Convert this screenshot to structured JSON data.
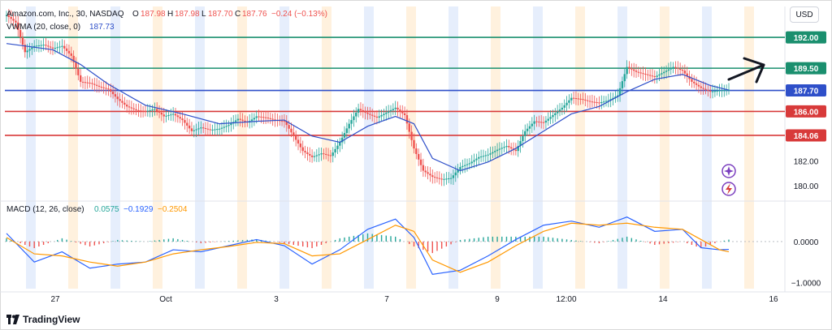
{
  "legend": {
    "symbol": "Amazon.com, Inc., 30, NASDAQ",
    "o_label": "O",
    "o_value": "187.98",
    "h_label": "H",
    "h_value": "187.98",
    "l_label": "L",
    "l_value": "187.70",
    "c_label": "C",
    "c_value": "187.76",
    "change": "−0.24 (−0.13%)",
    "vwma_label": "VWMA (20, close, 0)",
    "vwma_value": "187.73",
    "macd_label": "MACD (12, 26, close)",
    "macd_hist": "0.0575",
    "macd_line": "−0.1929",
    "macd_signal": "−0.2504"
  },
  "currency": "USD",
  "footer": {
    "brand": "TradingView"
  },
  "colors": {
    "green_line": "#1a8f6e",
    "red_line": "#d83a3a",
    "blue_line": "#2e4fc9",
    "up_candle": "#26a69a",
    "down_candle": "#ef5350",
    "macd_line": "#2962ff",
    "signal_line": "#ff9800",
    "session_orange": "#fff1de",
    "session_blue": "#e6eefc"
  },
  "chart_data": {
    "type": "line",
    "price_axis": {
      "ticks": [
        "182.00",
        "180.00"
      ],
      "ylim": [
        179,
        194.5
      ]
    },
    "x_ticks": [
      "27",
      "Oct",
      "3",
      "7",
      "9",
      "12:00",
      "14",
      "16"
    ],
    "price_levels": [
      {
        "value": 192.0,
        "label": "192.00",
        "color": "#1a8f6e"
      },
      {
        "value": 189.5,
        "label": "189.50",
        "color": "#1a8f6e"
      },
      {
        "value": 187.7,
        "label": "187.70",
        "color": "#2e4fc9"
      },
      {
        "value": 186.0,
        "label": "186.00",
        "color": "#d83a3a"
      },
      {
        "value": 184.06,
        "label": "184.06",
        "color": "#d83a3a"
      }
    ],
    "price_series": [
      {
        "x": 0,
        "y": 193.8
      },
      {
        "x": 2,
        "y": 193.2
      },
      {
        "x": 4,
        "y": 190.8
      },
      {
        "x": 6,
        "y": 191.3
      },
      {
        "x": 8,
        "y": 191.4
      },
      {
        "x": 10,
        "y": 191.1
      },
      {
        "x": 12,
        "y": 191.3
      },
      {
        "x": 14,
        "y": 190.5
      },
      {
        "x": 16,
        "y": 188.4
      },
      {
        "x": 18,
        "y": 188.3
      },
      {
        "x": 20,
        "y": 188.0
      },
      {
        "x": 22,
        "y": 187.8
      },
      {
        "x": 24,
        "y": 187.0
      },
      {
        "x": 26,
        "y": 186.4
      },
      {
        "x": 28,
        "y": 186.1
      },
      {
        "x": 30,
        "y": 186.0
      },
      {
        "x": 32,
        "y": 186.2
      },
      {
        "x": 34,
        "y": 185.6
      },
      {
        "x": 36,
        "y": 185.8
      },
      {
        "x": 38,
        "y": 185.3
      },
      {
        "x": 40,
        "y": 184.4
      },
      {
        "x": 42,
        "y": 184.7
      },
      {
        "x": 44,
        "y": 184.5
      },
      {
        "x": 46,
        "y": 184.6
      },
      {
        "x": 48,
        "y": 184.9
      },
      {
        "x": 50,
        "y": 185.4
      },
      {
        "x": 52,
        "y": 185.1
      },
      {
        "x": 54,
        "y": 185.6
      },
      {
        "x": 56,
        "y": 185.5
      },
      {
        "x": 58,
        "y": 185.3
      },
      {
        "x": 60,
        "y": 185.2
      },
      {
        "x": 62,
        "y": 184.0
      },
      {
        "x": 64,
        "y": 182.8
      },
      {
        "x": 66,
        "y": 182.3
      },
      {
        "x": 68,
        "y": 182.6
      },
      {
        "x": 70,
        "y": 182.4
      },
      {
        "x": 72,
        "y": 183.5
      },
      {
        "x": 74,
        "y": 185.0
      },
      {
        "x": 76,
        "y": 186.2
      },
      {
        "x": 78,
        "y": 185.8
      },
      {
        "x": 80,
        "y": 185.5
      },
      {
        "x": 82,
        "y": 185.9
      },
      {
        "x": 84,
        "y": 186.3
      },
      {
        "x": 86,
        "y": 185.7
      },
      {
        "x": 88,
        "y": 183.0
      },
      {
        "x": 90,
        "y": 181.2
      },
      {
        "x": 92,
        "y": 180.7
      },
      {
        "x": 94,
        "y": 180.5
      },
      {
        "x": 96,
        "y": 180.6
      },
      {
        "x": 98,
        "y": 181.5
      },
      {
        "x": 100,
        "y": 181.8
      },
      {
        "x": 102,
        "y": 182.3
      },
      {
        "x": 104,
        "y": 182.5
      },
      {
        "x": 106,
        "y": 182.9
      },
      {
        "x": 108,
        "y": 183.2
      },
      {
        "x": 110,
        "y": 182.8
      },
      {
        "x": 112,
        "y": 184.4
      },
      {
        "x": 114,
        "y": 185.2
      },
      {
        "x": 116,
        "y": 185.1
      },
      {
        "x": 118,
        "y": 185.7
      },
      {
        "x": 120,
        "y": 186.3
      },
      {
        "x": 122,
        "y": 187.1
      },
      {
        "x": 124,
        "y": 187.0
      },
      {
        "x": 126,
        "y": 186.8
      },
      {
        "x": 128,
        "y": 186.7
      },
      {
        "x": 130,
        "y": 186.9
      },
      {
        "x": 132,
        "y": 187.3
      },
      {
        "x": 134,
        "y": 189.6
      },
      {
        "x": 136,
        "y": 189.2
      },
      {
        "x": 138,
        "y": 189.0
      },
      {
        "x": 140,
        "y": 188.8
      },
      {
        "x": 142,
        "y": 189.2
      },
      {
        "x": 144,
        "y": 189.6
      },
      {
        "x": 146,
        "y": 189.3
      },
      {
        "x": 148,
        "y": 188.4
      },
      {
        "x": 150,
        "y": 187.9
      },
      {
        "x": 152,
        "y": 187.6
      },
      {
        "x": 154,
        "y": 187.7
      },
      {
        "x": 156,
        "y": 187.76
      }
    ],
    "vwma_series": [
      {
        "x": 0,
        "y": 191.5
      },
      {
        "x": 10,
        "y": 191.0
      },
      {
        "x": 16,
        "y": 189.8
      },
      {
        "x": 22,
        "y": 188.2
      },
      {
        "x": 30,
        "y": 186.5
      },
      {
        "x": 38,
        "y": 185.8
      },
      {
        "x": 46,
        "y": 185.0
      },
      {
        "x": 54,
        "y": 185.2
      },
      {
        "x": 60,
        "y": 185.3
      },
      {
        "x": 66,
        "y": 184.0
      },
      {
        "x": 72,
        "y": 183.5
      },
      {
        "x": 78,
        "y": 184.8
      },
      {
        "x": 84,
        "y": 185.6
      },
      {
        "x": 88,
        "y": 185.0
      },
      {
        "x": 92,
        "y": 182.2
      },
      {
        "x": 98,
        "y": 181.2
      },
      {
        "x": 104,
        "y": 181.9
      },
      {
        "x": 110,
        "y": 183.0
      },
      {
        "x": 116,
        "y": 184.4
      },
      {
        "x": 122,
        "y": 185.8
      },
      {
        "x": 128,
        "y": 186.4
      },
      {
        "x": 134,
        "y": 187.6
      },
      {
        "x": 140,
        "y": 188.6
      },
      {
        "x": 146,
        "y": 189.0
      },
      {
        "x": 152,
        "y": 188.1
      },
      {
        "x": 156,
        "y": 187.73
      }
    ],
    "macd_axis": {
      "ticks": [
        "0.0000",
        "−1.0000"
      ],
      "ylim": [
        -1.15,
        0.95
      ]
    },
    "macd_series": [
      {
        "x": 0,
        "y": 0.2
      },
      {
        "x": 6,
        "y": -0.5
      },
      {
        "x": 12,
        "y": -0.25
      },
      {
        "x": 18,
        "y": -0.65
      },
      {
        "x": 24,
        "y": -0.55
      },
      {
        "x": 30,
        "y": -0.5
      },
      {
        "x": 36,
        "y": -0.2
      },
      {
        "x": 42,
        "y": -0.25
      },
      {
        "x": 48,
        "y": -0.1
      },
      {
        "x": 54,
        "y": 0.05
      },
      {
        "x": 60,
        "y": -0.1
      },
      {
        "x": 66,
        "y": -0.55
      },
      {
        "x": 72,
        "y": -0.2
      },
      {
        "x": 78,
        "y": 0.3
      },
      {
        "x": 84,
        "y": 0.55
      },
      {
        "x": 88,
        "y": 0.1
      },
      {
        "x": 92,
        "y": -0.8
      },
      {
        "x": 98,
        "y": -0.7
      },
      {
        "x": 104,
        "y": -0.35
      },
      {
        "x": 110,
        "y": 0.05
      },
      {
        "x": 116,
        "y": 0.4
      },
      {
        "x": 122,
        "y": 0.5
      },
      {
        "x": 128,
        "y": 0.35
      },
      {
        "x": 134,
        "y": 0.6
      },
      {
        "x": 140,
        "y": 0.25
      },
      {
        "x": 146,
        "y": 0.3
      },
      {
        "x": 150,
        "y": -0.15
      },
      {
        "x": 154,
        "y": -0.2
      },
      {
        "x": 156,
        "y": -0.19
      }
    ],
    "signal_series": [
      {
        "x": 0,
        "y": 0.1
      },
      {
        "x": 6,
        "y": -0.3
      },
      {
        "x": 12,
        "y": -0.35
      },
      {
        "x": 18,
        "y": -0.5
      },
      {
        "x": 24,
        "y": -0.6
      },
      {
        "x": 30,
        "y": -0.5
      },
      {
        "x": 36,
        "y": -0.3
      },
      {
        "x": 42,
        "y": -0.2
      },
      {
        "x": 48,
        "y": -0.12
      },
      {
        "x": 54,
        "y": -0.02
      },
      {
        "x": 60,
        "y": -0.05
      },
      {
        "x": 66,
        "y": -0.35
      },
      {
        "x": 72,
        "y": -0.3
      },
      {
        "x": 78,
        "y": 0.05
      },
      {
        "x": 84,
        "y": 0.4
      },
      {
        "x": 88,
        "y": 0.25
      },
      {
        "x": 92,
        "y": -0.45
      },
      {
        "x": 98,
        "y": -0.75
      },
      {
        "x": 104,
        "y": -0.5
      },
      {
        "x": 110,
        "y": -0.1
      },
      {
        "x": 116,
        "y": 0.25
      },
      {
        "x": 122,
        "y": 0.45
      },
      {
        "x": 128,
        "y": 0.4
      },
      {
        "x": 134,
        "y": 0.45
      },
      {
        "x": 140,
        "y": 0.35
      },
      {
        "x": 146,
        "y": 0.3
      },
      {
        "x": 150,
        "y": 0.05
      },
      {
        "x": 154,
        "y": -0.2
      },
      {
        "x": 156,
        "y": -0.25
      }
    ]
  }
}
